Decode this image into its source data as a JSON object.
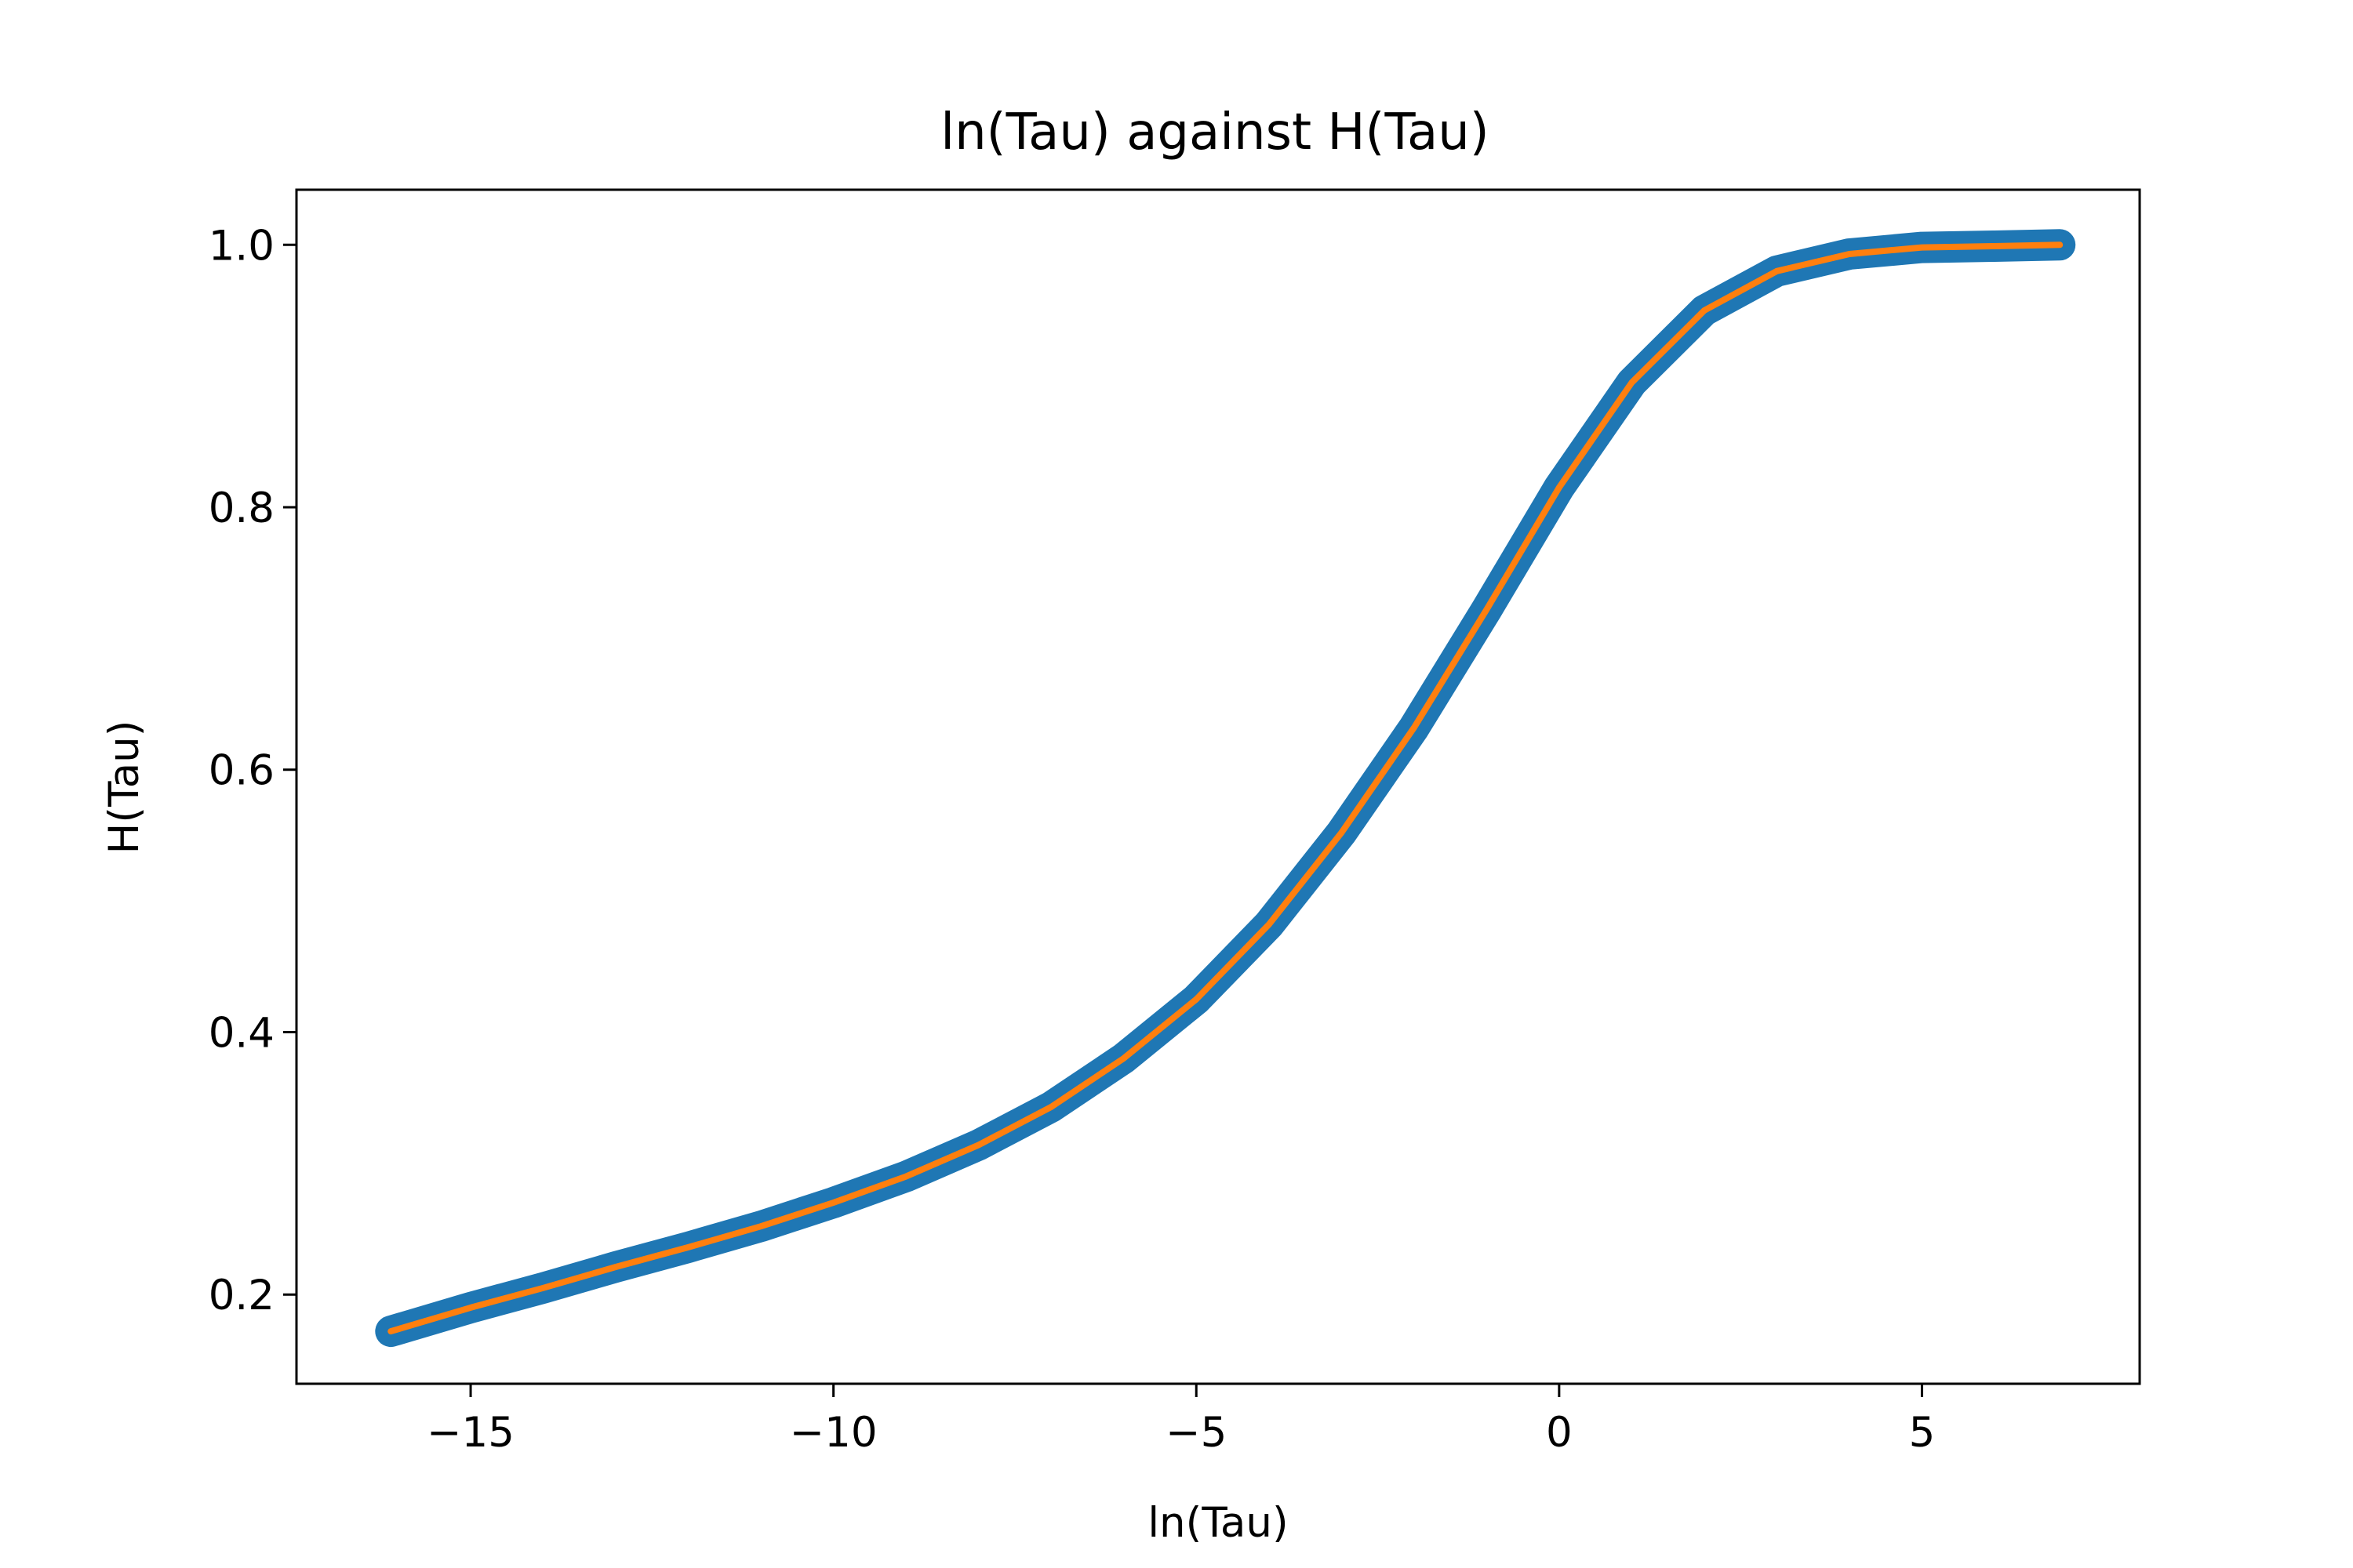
{
  "chart_data": {
    "type": "line",
    "title": "ln(Tau) against H(Tau)",
    "xlabel": "ln(Tau)",
    "ylabel": "H(Tau)",
    "xlim": [
      -17.4,
      8.0
    ],
    "ylim": [
      0.132,
      1.042
    ],
    "xticks": [
      {
        "value": -15,
        "label": "−15"
      },
      {
        "value": -10,
        "label": "−10"
      },
      {
        "value": -5,
        "label": "−5"
      },
      {
        "value": 0,
        "label": "0"
      },
      {
        "value": 5,
        "label": "5"
      }
    ],
    "yticks": [
      {
        "value": 0.2,
        "label": "0.2"
      },
      {
        "value": 0.4,
        "label": "0.4"
      },
      {
        "value": 0.6,
        "label": "0.6"
      },
      {
        "value": 0.8,
        "label": "0.8"
      },
      {
        "value": 1.0,
        "label": "1.0"
      }
    ],
    "grid": false,
    "series": [
      {
        "color": "#1f77b4",
        "style": "thick",
        "x": [
          -16.1,
          -15.0,
          -14.0,
          -13.0,
          -12.0,
          -11.0,
          -10.0,
          -9.0,
          -8.0,
          -7.0,
          -6.0,
          -5.0,
          -4.0,
          -3.0,
          -2.0,
          -1.0,
          0.0,
          1.0,
          2.0,
          3.0,
          4.0,
          5.0,
          6.0,
          6.9
        ],
        "y": [
          0.172,
          0.19,
          0.205,
          0.221,
          0.236,
          0.252,
          0.27,
          0.29,
          0.314,
          0.343,
          0.38,
          0.425,
          0.482,
          0.552,
          0.632,
          0.722,
          0.815,
          0.895,
          0.95,
          0.98,
          0.993,
          0.998,
          0.999,
          1.0
        ]
      },
      {
        "color": "#ff7f0e",
        "style": "thin",
        "x": [
          -16.1,
          -15.0,
          -14.0,
          -13.0,
          -12.0,
          -11.0,
          -10.0,
          -9.0,
          -8.0,
          -7.0,
          -6.0,
          -5.0,
          -4.0,
          -3.0,
          -2.0,
          -1.0,
          0.0,
          1.0,
          2.0,
          3.0,
          4.0,
          5.0,
          6.0,
          6.9
        ],
        "y": [
          0.172,
          0.19,
          0.205,
          0.221,
          0.236,
          0.252,
          0.27,
          0.29,
          0.314,
          0.343,
          0.38,
          0.425,
          0.482,
          0.552,
          0.632,
          0.722,
          0.815,
          0.895,
          0.95,
          0.98,
          0.993,
          0.998,
          0.999,
          1.0
        ]
      }
    ]
  }
}
